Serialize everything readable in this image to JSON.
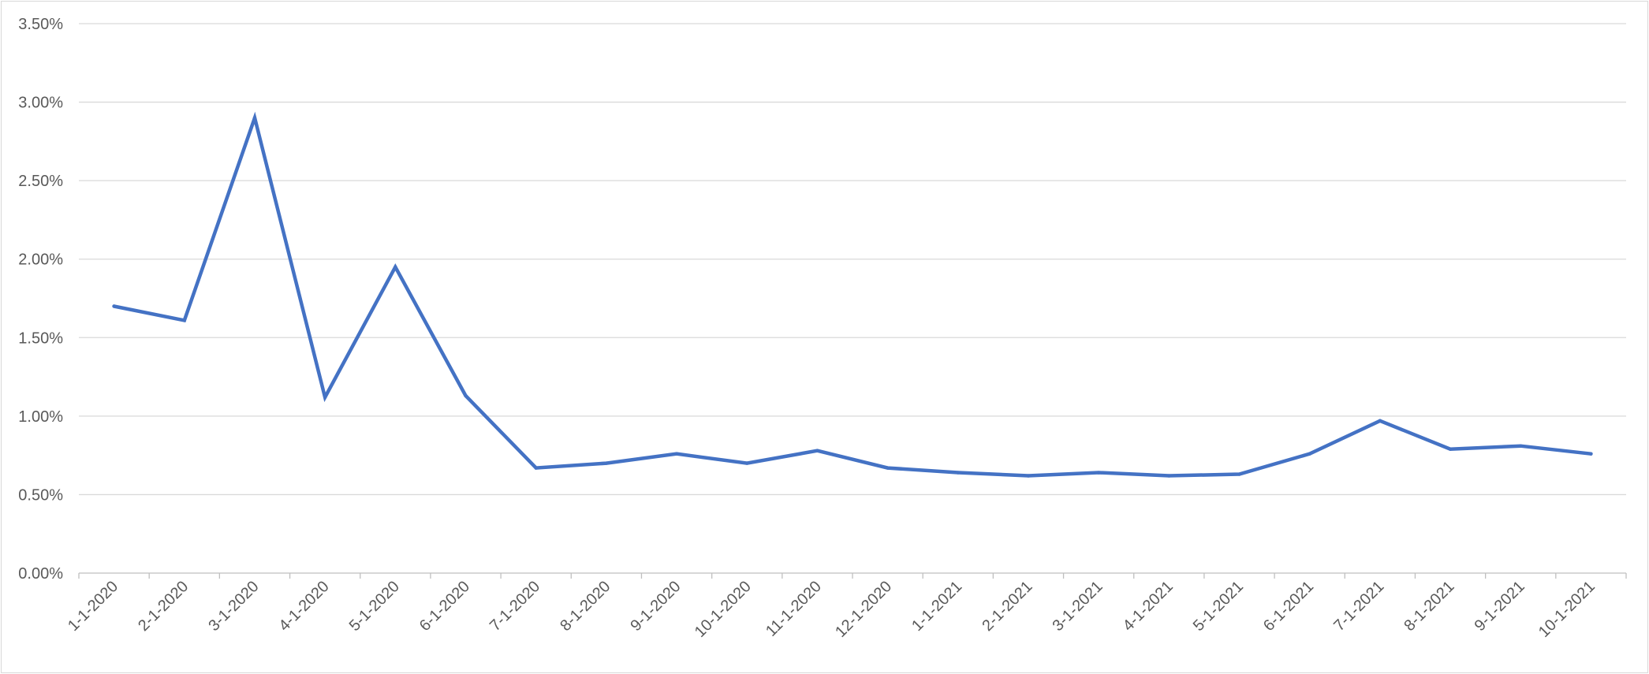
{
  "chart_data": {
    "type": "line",
    "title": "",
    "xlabel": "",
    "ylabel": "",
    "categories": [
      "1-1-2020",
      "2-1-2020",
      "3-1-2020",
      "4-1-2020",
      "5-1-2020",
      "6-1-2020",
      "7-1-2020",
      "8-1-2020",
      "9-1-2020",
      "10-1-2020",
      "11-1-2020",
      "12-1-2020",
      "1-1-2021",
      "2-1-2021",
      "3-1-2021",
      "4-1-2021",
      "5-1-2021",
      "6-1-2021",
      "7-1-2021",
      "8-1-2021",
      "9-1-2021",
      "10-1-2021"
    ],
    "series": [
      {
        "values": [
          1.7,
          1.61,
          2.9,
          1.12,
          1.95,
          1.13,
          0.67,
          0.7,
          0.76,
          0.7,
          0.78,
          0.67,
          0.64,
          0.62,
          0.64,
          0.62,
          0.63,
          0.76,
          0.97,
          0.79,
          0.81,
          0.76
        ],
        "color": "#4472c4"
      }
    ],
    "ylim": [
      0,
      3.5
    ],
    "yticks": [
      "0.00%",
      "0.50%",
      "1.00%",
      "1.50%",
      "2.00%",
      "2.50%",
      "3.00%",
      "3.50%"
    ],
    "grid": true,
    "legend": "none"
  }
}
